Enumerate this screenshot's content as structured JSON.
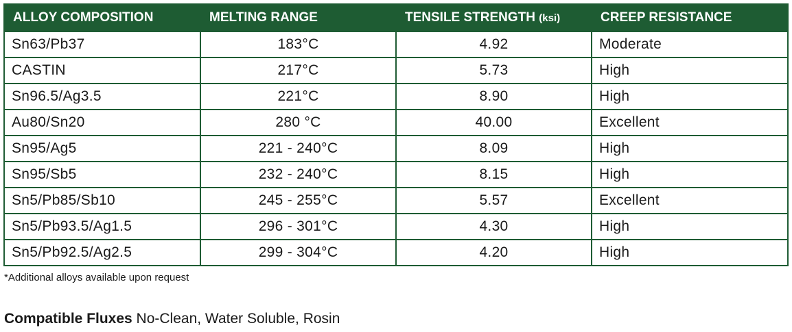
{
  "table": {
    "headers": [
      "ALLOY COMPOSITION",
      "MELTING RANGE",
      "TENSILE STRENGTH",
      "CREEP RESISTANCE"
    ],
    "tensile_unit": "(ksi)",
    "rows": [
      [
        "Sn63/Pb37",
        "183°C",
        "4.92",
        "Moderate"
      ],
      [
        "CASTIN",
        "217°C",
        "5.73",
        "High"
      ],
      [
        "Sn96.5/Ag3.5",
        "221°C",
        "8.90",
        "High"
      ],
      [
        "Au80/Sn20",
        "280 °C",
        "40.00",
        "Excellent"
      ],
      [
        "Sn95/Ag5",
        "221 - 240°C",
        "8.09",
        "High"
      ],
      [
        "Sn95/Sb5",
        "232 - 240°C",
        "8.15",
        "High"
      ],
      [
        "Sn5/Pb85/Sb10",
        "245 - 255°C",
        "5.57",
        "Excellent"
      ],
      [
        "Sn5/Pb93.5/Ag1.5",
        "296 - 301°C",
        "4.30",
        "High"
      ],
      [
        "Sn5/Pb92.5/Ag2.5",
        "299 - 304°C",
        "4.20",
        "High"
      ]
    ]
  },
  "footnote": "*Additional alloys available upon request",
  "fluxes": {
    "label": "Compatible Fluxes",
    "text": "No-Clean, Water Soluble, Rosin"
  }
}
